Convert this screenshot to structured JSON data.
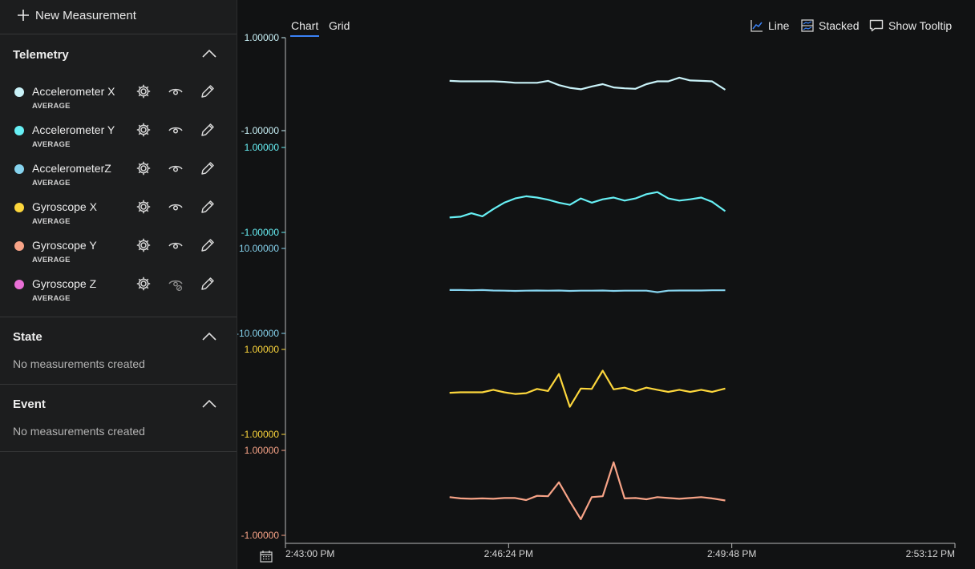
{
  "sidebar": {
    "new_measurement": "New Measurement",
    "sections": {
      "telemetry": {
        "title": "Telemetry",
        "items": [
          {
            "name": "Accelerometer X",
            "sub": "AVERAGE",
            "color": "#c9f2f8",
            "visible": true
          },
          {
            "name": "Accelerometer Y",
            "sub": "AVERAGE",
            "color": "#67f0f5",
            "visible": true
          },
          {
            "name": "AccelerometerZ",
            "sub": "AVERAGE",
            "color": "#86d3ee",
            "visible": true
          },
          {
            "name": "Gyroscope X",
            "sub": "AVERAGE",
            "color": "#fcd63c",
            "visible": true
          },
          {
            "name": "Gyroscope Y",
            "sub": "AVERAGE",
            "color": "#f7a387",
            "visible": true
          },
          {
            "name": "Gyroscope Z",
            "sub": "AVERAGE",
            "color": "#e96fd6",
            "visible": false
          }
        ]
      },
      "state": {
        "title": "State",
        "empty": "No measurements created"
      },
      "event": {
        "title": "Event",
        "empty": "No measurements created"
      }
    }
  },
  "tabs": {
    "chart": "Chart",
    "grid": "Grid",
    "active": "chart"
  },
  "toolbar": {
    "line": "Line",
    "stacked": "Stacked",
    "tooltip": "Show Tooltip"
  },
  "colors": {
    "accent": "#3b82f6",
    "background": "#111213",
    "sidebar": "#1c1d1e"
  },
  "chart_data": {
    "type": "line",
    "layout": "stacked",
    "x_ticks": [
      "2:43:00 PM",
      "2:46:24 PM",
      "2:49:48 PM",
      "2:53:12 PM"
    ],
    "x_range": [
      0,
      612
    ],
    "series": [
      {
        "name": "Accelerometer X",
        "color": "#c9f2f8",
        "ymin": -1,
        "ymax": 1,
        "ylim_labels": [
          "1.00000",
          "-1.00000"
        ],
        "x": [
          150,
          160,
          170,
          180,
          190,
          200,
          210,
          220,
          230,
          240,
          250,
          260,
          270,
          280,
          290,
          300,
          310,
          320,
          330,
          340,
          350,
          360,
          370,
          380,
          390,
          402
        ],
        "values": [
          0.07,
          0.06,
          0.06,
          0.06,
          0.06,
          0.05,
          0.03,
          0.03,
          0.03,
          0.07,
          -0.02,
          -0.08,
          -0.11,
          -0.05,
          0.0,
          -0.07,
          -0.09,
          -0.1,
          0.0,
          0.06,
          0.06,
          0.14,
          0.08,
          0.07,
          0.06,
          -0.12
        ]
      },
      {
        "name": "Accelerometer Y",
        "color": "#67f0f5",
        "ymin": -1,
        "ymax": 1,
        "ylim_labels": [
          "1.00000",
          "-1.00000"
        ],
        "x": [
          150,
          160,
          170,
          180,
          190,
          200,
          210,
          220,
          230,
          240,
          250,
          260,
          270,
          280,
          290,
          300,
          310,
          320,
          330,
          340,
          350,
          360,
          370,
          380,
          390,
          402
        ],
        "values": [
          -0.65,
          -0.63,
          -0.55,
          -0.62,
          -0.45,
          -0.3,
          -0.2,
          -0.15,
          -0.18,
          -0.23,
          -0.3,
          -0.35,
          -0.2,
          -0.3,
          -0.22,
          -0.18,
          -0.25,
          -0.2,
          -0.1,
          -0.05,
          -0.2,
          -0.25,
          -0.22,
          -0.18,
          -0.28,
          -0.5
        ]
      },
      {
        "name": "AccelerometerZ",
        "color": "#86d3ee",
        "ymin": -10,
        "ymax": 10,
        "ylim_labels": [
          "10.00000",
          "-10.00000"
        ],
        "x": [
          150,
          160,
          170,
          180,
          190,
          200,
          210,
          220,
          230,
          240,
          250,
          260,
          270,
          280,
          290,
          300,
          310,
          320,
          330,
          340,
          350,
          360,
          370,
          380,
          390,
          402
        ],
        "values": [
          0.2,
          0.2,
          0.15,
          0.2,
          0.1,
          0.05,
          0.0,
          0.05,
          0.1,
          0.05,
          0.1,
          0.0,
          0.05,
          0.05,
          0.1,
          0.0,
          0.05,
          0.05,
          0.05,
          -0.3,
          0.05,
          0.1,
          0.1,
          0.1,
          0.15,
          0.15
        ]
      },
      {
        "name": "Gyroscope X",
        "color": "#fcd63c",
        "ymin": -1,
        "ymax": 1,
        "ylim_labels": [
          "1.00000",
          "-1.00000"
        ],
        "x": [
          150,
          160,
          170,
          180,
          190,
          200,
          210,
          220,
          230,
          240,
          250,
          260,
          270,
          280,
          290,
          300,
          310,
          320,
          330,
          340,
          350,
          360,
          370,
          380,
          390,
          402
        ],
        "values": [
          -0.02,
          -0.01,
          -0.01,
          -0.01,
          0.05,
          -0.01,
          -0.05,
          -0.03,
          0.07,
          0.02,
          0.42,
          -0.35,
          0.08,
          0.07,
          0.5,
          0.06,
          0.1,
          0.02,
          0.1,
          0.05,
          0.0,
          0.05,
          0.0,
          0.05,
          0.0,
          0.08
        ]
      },
      {
        "name": "Gyroscope Y",
        "color": "#f7a387",
        "ymin": -1,
        "ymax": 1,
        "ylim_labels": [
          "1.00000",
          "-1.00000"
        ],
        "x": [
          150,
          160,
          170,
          180,
          190,
          200,
          210,
          220,
          230,
          240,
          250,
          260,
          270,
          280,
          290,
          300,
          310,
          320,
          330,
          340,
          350,
          360,
          370,
          380,
          390,
          402
        ],
        "values": [
          -0.1,
          -0.13,
          -0.14,
          -0.13,
          -0.14,
          -0.12,
          -0.12,
          -0.17,
          -0.07,
          -0.08,
          0.25,
          -0.2,
          -0.62,
          -0.1,
          -0.08,
          0.72,
          -0.13,
          -0.12,
          -0.15,
          -0.1,
          -0.12,
          -0.14,
          -0.12,
          -0.1,
          -0.13,
          -0.18
        ]
      }
    ]
  }
}
